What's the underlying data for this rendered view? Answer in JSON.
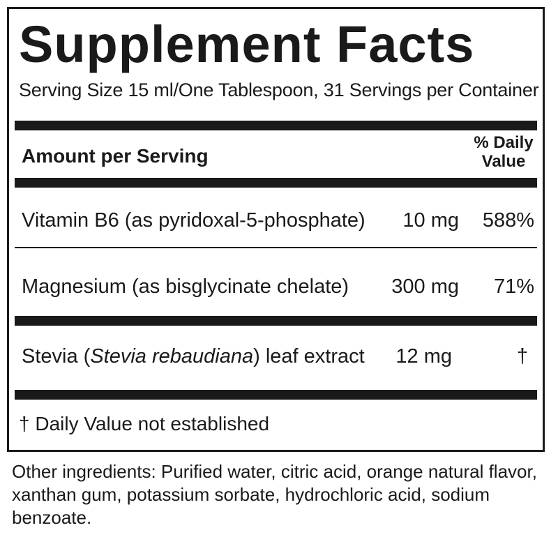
{
  "title": "Supplement Facts",
  "serving_info": "Serving Size 15 ml/One Tablespoon, 31 Servings per Container",
  "header": {
    "amount_label": "Amount per Serving",
    "dv_line1": "% Daily",
    "dv_line2": "Value"
  },
  "rows": [
    {
      "name": "Vitamin B6 (as pyridoxal-5-phosphate)",
      "amount": "10 mg",
      "dv": "588%"
    },
    {
      "name": "Magnesium (as bisglycinate chelate)",
      "amount": "300 mg",
      "dv": "71%"
    },
    {
      "name_prefix": "Stevia (",
      "name_italic": "Stevia rebaudiana",
      "name_suffix": ") leaf extract",
      "amount": "12 mg",
      "dv": "†"
    }
  ],
  "footnote": "† Daily Value not established",
  "other_ingredients": "Other ingredients: Purified water, citric acid, orange natural flavor, xanthan gum, potassium sorbate, hydrochloric acid, sodium benzoate."
}
